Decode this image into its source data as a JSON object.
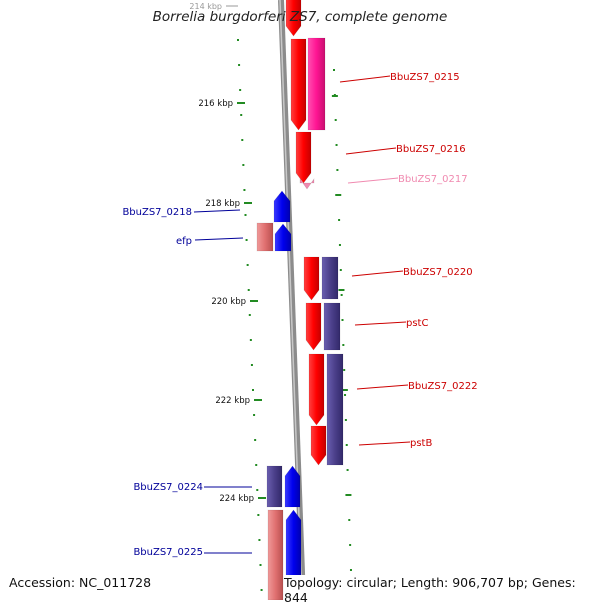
{
  "map": {
    "title": "Borrelia burgdorferi ZS7, complete genome",
    "accession": "Accession: NC_011728",
    "topology": "Topology: circular; Length: 906,707 bp; Genes: 844",
    "clipped_tick": "214 kbp",
    "ticks": [
      {
        "label": "216 kbp"
      },
      {
        "label": "218 kbp"
      },
      {
        "label": "220 kbp"
      },
      {
        "label": "222 kbp"
      },
      {
        "label": "224 kbp"
      }
    ],
    "genes": [
      {
        "label": "BbuZS7_0215",
        "color": "#cc0000"
      },
      {
        "label": "BbuZS7_0216",
        "color": "#cc0000"
      },
      {
        "label": "BbuZS7_0217",
        "color": "#f08ab0"
      },
      {
        "label": "BbuZS7_0218",
        "color": "#000099"
      },
      {
        "label": "efp",
        "color": "#000099"
      },
      {
        "label": "BbuZS7_0220",
        "color": "#cc0000"
      },
      {
        "label": "pstC",
        "color": "#cc0000"
      },
      {
        "label": "BbuZS7_0222",
        "color": "#cc0000"
      },
      {
        "label": "pstB",
        "color": "#cc0000"
      },
      {
        "label": "BbuZS7_0224",
        "color": "#000099"
      },
      {
        "label": "BbuZS7_0225",
        "color": "#000099"
      }
    ],
    "colors": {
      "forward_cds": "#ff0000",
      "reverse_cds": "#0000ee",
      "magenta_feature": "#ff1493",
      "purple_feature": "#4b3f8a",
      "pink_feature": "#e07070",
      "backbone": "#8c8c8c",
      "tick_marks": "#228b22"
    }
  }
}
